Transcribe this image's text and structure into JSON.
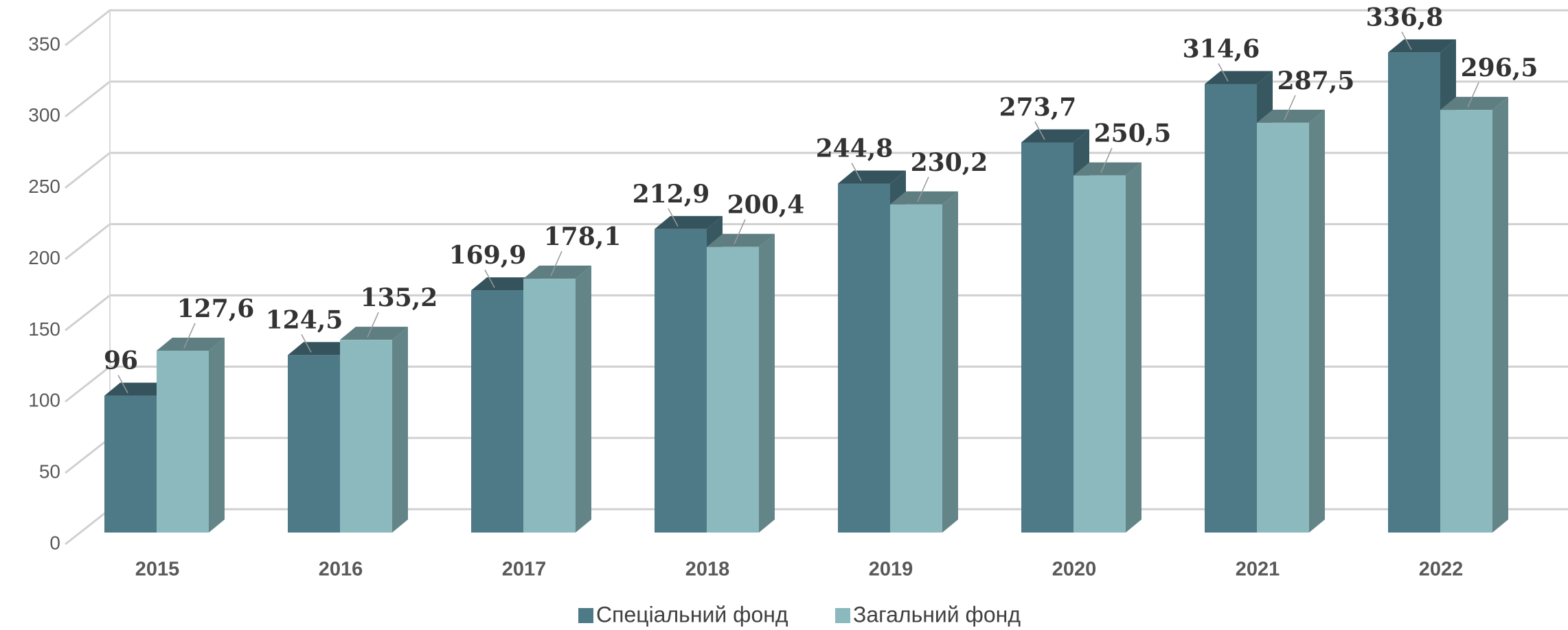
{
  "chart_data": {
    "type": "bar3d",
    "categories": [
      "2015",
      "2016",
      "2017",
      "2018",
      "2019",
      "2020",
      "2021",
      "2022"
    ],
    "series": [
      {
        "name": "Спеціальний фонд",
        "color": "#4e7a87",
        "values": [
          96,
          124.5,
          169.9,
          212.9,
          244.8,
          273.7,
          314.6,
          336.8
        ],
        "value_labels": [
          "96",
          "124,5",
          "169,9",
          "212,9",
          "244,8",
          "273,7",
          "314,6",
          "336,8"
        ]
      },
      {
        "name": "Загальний фонд",
        "color": "#8bb9bd",
        "values": [
          127.6,
          135.2,
          178.1,
          200.4,
          230.2,
          250.5,
          287.5,
          296.5
        ],
        "value_labels": [
          "127,6",
          "135,2",
          "178,1",
          "200,4",
          "230,2",
          "250,5",
          "287,5",
          "296,5"
        ]
      }
    ],
    "ylim": [
      0,
      350
    ],
    "yticks": [
      0,
      50,
      100,
      150,
      200,
      250,
      300,
      350
    ],
    "grid": true,
    "legend": "bottom"
  }
}
